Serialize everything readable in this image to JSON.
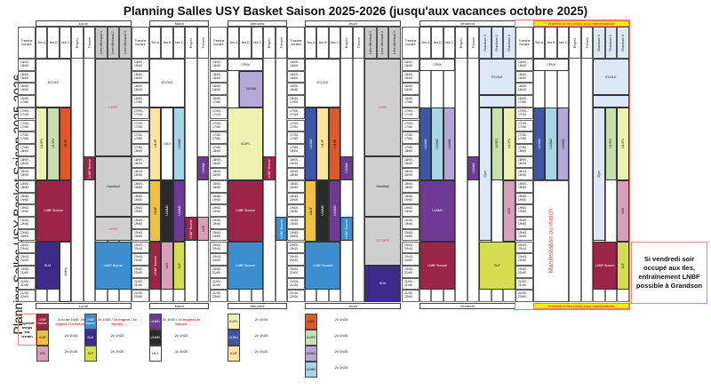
{
  "title": "Planning Salles USY Basket Saison 2025-2026 (jusqu'aux vacances octobre 2025)",
  "side_title": "Planning Salles USY Basket Saison 2025-2026",
  "time_header": "Tranche horaire",
  "time_slots": [
    {
      "start": "14h00",
      "end": "15h00"
    },
    {
      "start": "15h00",
      "end": "16h00"
    },
    {
      "start": "16h00",
      "end": "16h30"
    },
    {
      "start": "16h30",
      "end": "17h00"
    },
    {
      "start": "17h00",
      "end": "17h15"
    },
    {
      "start": "17h15",
      "end": "17h30"
    },
    {
      "start": "17h30",
      "end": "17h45"
    },
    {
      "start": "17h45",
      "end": "18h00"
    },
    {
      "start": "18h00",
      "end": "18h15"
    },
    {
      "start": "18h15",
      "end": "18h30"
    },
    {
      "start": "18h30",
      "end": "18h45"
    },
    {
      "start": "18h45",
      "end": "19h00"
    },
    {
      "start": "19h00",
      "end": "19h30"
    },
    {
      "start": "19h30",
      "end": "19h45"
    },
    {
      "start": "19h45",
      "end": "20h00"
    },
    {
      "start": "20h00",
      "end": "20h15"
    },
    {
      "start": "20h15",
      "end": "20h30"
    },
    {
      "start": "20h30",
      "end": "21h00"
    },
    {
      "start": "21h00",
      "end": "21h30"
    },
    {
      "start": "21h30",
      "end": "22h00"
    }
  ],
  "days": [
    {
      "name": "Lundi",
      "rooms": [
        "Iles A",
        "Iles B",
        "Iles C",
        "Engins",
        "Théorie",
        "Léon Michaud 1",
        "Léon Michaud 2",
        "Léon Michaud 3"
      ]
    },
    {
      "name": "Mardi",
      "rooms": [
        "Iles A",
        "Iles B",
        "Iles C",
        "Engins",
        "Théorie"
      ]
    },
    {
      "name": "Mercredi",
      "rooms": [
        "Iles A",
        "Iles B",
        "Iles C",
        "Engins",
        "Théorie"
      ]
    },
    {
      "name": "Jeudi",
      "rooms": [
        "Iles A",
        "Iles B",
        "Iles C",
        "Engins",
        "Théorie",
        "Léon Michaud 1",
        "Léon Michaud 2",
        "Léon Michaud 3"
      ]
    },
    {
      "name": "Vendredi",
      "rooms": [
        "Iles A",
        "Iles B",
        "Iles C",
        "Engins",
        "Théorie",
        "Grandson 1",
        "Grandson 2",
        "Grandson 3"
      ]
    },
    {
      "name": "Vendredi si Iles utilisé pour manifestation",
      "rooms": [
        "Iles A",
        "Iles B",
        "Iles C",
        "Engins",
        "Théorie",
        "Grandson 1",
        "Grandson 2",
        "Grandson 3"
      ],
      "highlight": true
    }
  ],
  "colors": {
    "maroon": "#9b2448",
    "blue": "#3b8fd0",
    "indigo": "#3d2a8a",
    "purple": "#6e3a96",
    "black": "#2a2a2e",
    "yellow": "#f0c040",
    "pink": "#d8a0b8",
    "lime": "#d4dc50",
    "lightyellow": "#eef2b0",
    "green": "#c8e0b0",
    "orange": "#e0582a",
    "royal": "#3f56a8",
    "beige": "#fbe3a0",
    "lightblue": "#a8d4e8",
    "lavender": "#b3a8d8",
    "grey": "#cfcfcf",
    "school": "#dce8f5",
    "white": "#ffffff",
    "red_text": "#e8483c"
  },
  "blocks": [
    {
      "day": 0,
      "from": 0,
      "to": 2,
      "start": "14h00",
      "end": "17h00",
      "label": "ÉCOLE",
      "color": "#ffffff"
    },
    {
      "day": 0,
      "from": 5,
      "to": 7,
      "start": "14h00",
      "end": "18h00",
      "label": "LIBRE",
      "color": "#cfcfcf",
      "text": "#e8483c"
    },
    {
      "day": 0,
      "from": 5,
      "to": 7,
      "start": "18h00",
      "end": "19h30",
      "label": "Handball",
      "color": "#cfcfcf"
    },
    {
      "day": 0,
      "from": 5,
      "to": 7,
      "start": "19h30",
      "end": "20h00",
      "label": "LIBRE",
      "color": "#cfcfcf",
      "text": "#e8483c"
    },
    {
      "day": 0,
      "from": 5,
      "to": 7,
      "start": "20h00",
      "end": "21h30",
      "label": "LNBF Bourse",
      "color": "#3b8fd0",
      "text": "#fff"
    },
    {
      "day": 0,
      "from": 0,
      "to": 0,
      "start": "17h00",
      "end": "18h30",
      "label": "U13F1",
      "color": "#eef2b0"
    },
    {
      "day": 0,
      "from": 1,
      "to": 1,
      "start": "17h00",
      "end": "18h30",
      "label": "U13F2",
      "color": "#c8e0b0"
    },
    {
      "day": 0,
      "from": 2,
      "to": 2,
      "start": "17h00",
      "end": "18h30",
      "label": "U15F",
      "color": "#e0582a"
    },
    {
      "day": 0,
      "from": 4,
      "to": 4,
      "start": "18h00",
      "end": "18h30",
      "label": "LNBF Bourse",
      "color": "#9b2448",
      "text": "#fff"
    },
    {
      "day": 0,
      "from": 0,
      "to": 2,
      "start": "18h30",
      "end": "20h00",
      "label": "LNBF Bourse",
      "color": "#9b2448",
      "text": "#fff"
    },
    {
      "day": 0,
      "from": 0,
      "to": 1,
      "start": "20h00",
      "end": "21h30",
      "label": "SLM",
      "color": "#3d2a8a",
      "text": "#fff"
    },
    {
      "day": 0,
      "from": 2,
      "to": 2,
      "start": "20h00",
      "end": "22h00",
      "label": "Volley",
      "color": "#ffffff"
    },
    {
      "day": 1,
      "from": 0,
      "to": 2,
      "start": "14h00",
      "end": "17h00",
      "label": "ÉCOLE",
      "color": "#ffffff"
    },
    {
      "day": 1,
      "from": 0,
      "to": 0,
      "start": "17h00",
      "end": "18h30",
      "label": "U14F",
      "color": "#fbe3a0"
    },
    {
      "day": 1,
      "from": 1,
      "to": 1,
      "start": "17h00",
      "end": "18h30",
      "label": "U8-9",
      "color": "#ffffff",
      "horizontal": true
    },
    {
      "day": 1,
      "from": 2,
      "to": 2,
      "start": "17h00",
      "end": "18h30",
      "label": "U10M2",
      "color": "#a8d4e8"
    },
    {
      "day": 1,
      "from": 4,
      "to": 4,
      "start": "18h00",
      "end": "18h30",
      "label": "U16M1",
      "color": "#6e3a96",
      "text": "#fff"
    },
    {
      "day": 1,
      "from": 0,
      "to": 0,
      "start": "18h30",
      "end": "20h00",
      "label": "U18F",
      "color": "#f0c040"
    },
    {
      "day": 1,
      "from": 1,
      "to": 1,
      "start": "18h30",
      "end": "20h00",
      "label": "U16M2",
      "color": "#2a2a2e",
      "text": "#fff"
    },
    {
      "day": 1,
      "from": 2,
      "to": 2,
      "start": "18h30",
      "end": "20h00",
      "label": "U16M1",
      "color": "#6e3a96",
      "text": "#fff"
    },
    {
      "day": 1,
      "from": 3,
      "to": 3,
      "start": "19h30",
      "end": "20h00",
      "label": "LNBF Bourse",
      "color": "#9b2448",
      "text": "#fff"
    },
    {
      "day": 1,
      "from": 4,
      "to": 4,
      "start": "19h30",
      "end": "20h00",
      "label": "U20",
      "color": "#d8a0b8"
    },
    {
      "day": 1,
      "from": 0,
      "to": 0,
      "start": "20h00",
      "end": "21h30",
      "label": "LNBF Bourse",
      "color": "#9b2448",
      "text": "#fff"
    },
    {
      "day": 1,
      "from": 1,
      "to": 1,
      "start": "20h00",
      "end": "21h30",
      "label": "U20",
      "color": "#d8a0b8"
    },
    {
      "day": 1,
      "from": 2,
      "to": 2,
      "start": "20h00",
      "end": "21h30",
      "label": "SLF",
      "color": "#d4dc50"
    },
    {
      "day": 2,
      "from": 0,
      "to": 2,
      "start": "14h00",
      "end": "15h00",
      "label": "CPNV",
      "color": "#ffffff"
    },
    {
      "day": 2,
      "from": 1,
      "to": 2,
      "start": "15h00",
      "end": "17h00",
      "label": "U10M1",
      "color": "#b3a8d8"
    },
    {
      "day": 2,
      "from": 0,
      "to": 2,
      "start": "17h00",
      "end": "18h30",
      "label": "U13F1",
      "color": "#eef2b0"
    },
    {
      "day": 2,
      "from": 3,
      "to": 3,
      "start": "18h00",
      "end": "18h30",
      "label": "LNBF Bourse",
      "color": "#9b2448",
      "text": "#fff"
    },
    {
      "day": 2,
      "from": 0,
      "to": 2,
      "start": "18h30",
      "end": "20h00",
      "label": "LNBF Bourse",
      "color": "#9b2448",
      "text": "#fff"
    },
    {
      "day": 2,
      "from": 4,
      "to": 4,
      "start": "19h30",
      "end": "20h00",
      "label": "LNBF Bourse",
      "color": "#3b8fd0",
      "text": "#fff"
    },
    {
      "day": 2,
      "from": 0,
      "to": 2,
      "start": "20h00",
      "end": "21h30",
      "label": "LNBF Bourse",
      "color": "#3b8fd0",
      "text": "#fff"
    },
    {
      "day": 3,
      "from": 0,
      "to": 2,
      "start": "14h00",
      "end": "17h00",
      "label": "ÉCOLE",
      "color": "#ffffff"
    },
    {
      "day": 3,
      "from": 5,
      "to": 7,
      "start": "14h00",
      "end": "18h00",
      "label": "LIBRE",
      "color": "#cfcfcf",
      "text": "#e8483c"
    },
    {
      "day": 3,
      "from": 5,
      "to": 7,
      "start": "18h00",
      "end": "19h30",
      "label": "Handball",
      "color": "#cfcfcf"
    },
    {
      "day": 3,
      "from": 5,
      "to": 7,
      "start": "19h30",
      "end": "20h30",
      "label": "OCCUPÉ",
      "color": "#cfcfcf",
      "text": "#e8483c"
    },
    {
      "day": 3,
      "from": 5,
      "to": 7,
      "start": "20h30",
      "end": "22h00",
      "label": "SLM",
      "color": "#3d2a8a",
      "text": "#fff"
    },
    {
      "day": 3,
      "from": 0,
      "to": 0,
      "start": "17h00",
      "end": "18h30",
      "label": "U13M1",
      "color": "#3f56a8",
      "text": "#fff"
    },
    {
      "day": 3,
      "from": 1,
      "to": 1,
      "start": "17h00",
      "end": "18h30",
      "label": "U14F",
      "color": "#fbe3a0"
    },
    {
      "day": 3,
      "from": 2,
      "to": 2,
      "start": "17h00",
      "end": "18h30",
      "label": "U15F",
      "color": "#e0582a"
    },
    {
      "day": 3,
      "from": 3,
      "to": 3,
      "start": "18h00",
      "end": "18h30",
      "label": "U16M1",
      "color": "#6e3a96",
      "text": "#fff"
    },
    {
      "day": 3,
      "from": 0,
      "to": 0,
      "start": "18h30",
      "end": "20h00",
      "label": "U18F",
      "color": "#f0c040"
    },
    {
      "day": 3,
      "from": 1,
      "to": 1,
      "start": "18h30",
      "end": "20h00",
      "label": "U16M2",
      "color": "#2a2a2e",
      "text": "#fff"
    },
    {
      "day": 3,
      "from": 2,
      "to": 2,
      "start": "18h30",
      "end": "20h00",
      "label": "U16M1",
      "color": "#6e3a96",
      "text": "#fff"
    },
    {
      "day": 3,
      "from": 3,
      "to": 3,
      "start": "19h30",
      "end": "20h00",
      "label": "LNBF Bourse",
      "color": "#3b8fd0",
      "text": "#fff"
    },
    {
      "day": 3,
      "from": 0,
      "to": 2,
      "start": "20h00",
      "end": "21h30",
      "label": "LNBF Bourse",
      "color": "#3b8fd0",
      "text": "#fff"
    },
    {
      "day": 4,
      "from": 0,
      "to": 2,
      "start": "14h00",
      "end": "15h00",
      "label": "CPNV",
      "color": "#ffffff"
    },
    {
      "day": 4,
      "from": 5,
      "to": 7,
      "start": "14h00",
      "end": "16h30",
      "label": "ÉCOLE",
      "color": "#dce8f5"
    },
    {
      "day": 4,
      "from": 5,
      "to": 7,
      "start": "16h30",
      "end": "17h00",
      "label": "",
      "color": "#dce8f5"
    },
    {
      "day": 4,
      "from": 0,
      "to": 0,
      "start": "17h00",
      "end": "18h30",
      "label": "U13M1",
      "color": "#3f56a8",
      "text": "#fff"
    },
    {
      "day": 4,
      "from": 1,
      "to": 1,
      "start": "17h00",
      "end": "18h30",
      "label": "U10M2",
      "color": "#a8d4e8"
    },
    {
      "day": 4,
      "from": 2,
      "to": 2,
      "start": "17h00",
      "end": "18h30",
      "label": "U10M1",
      "color": "#b3a8d8"
    },
    {
      "day": 4,
      "from": 4,
      "to": 4,
      "start": "18h00",
      "end": "18h30",
      "label": "U16M1",
      "color": "#6e3a96",
      "text": "#fff"
    },
    {
      "day": 4,
      "from": 0,
      "to": 2,
      "start": "18h30",
      "end": "20h00",
      "label": "U16M1",
      "color": "#6e3a96",
      "text": "#fff"
    },
    {
      "day": 4,
      "from": 0,
      "to": 2,
      "start": "20h00",
      "end": "21h30",
      "label": "LNBF Bourse",
      "color": "#9b2448",
      "text": "#fff"
    },
    {
      "day": 4,
      "from": 5,
      "to": 5,
      "start": "17h00",
      "end": "20h00",
      "label": "Gym",
      "color": "#dce8f5"
    },
    {
      "day": 4,
      "from": 6,
      "to": 6,
      "start": "17h00",
      "end": "18h30",
      "label": "U13F2",
      "color": "#c8e0b0"
    },
    {
      "day": 4,
      "from": 7,
      "to": 7,
      "start": "17h00",
      "end": "18h30",
      "label": "U13F1",
      "color": "#eef2b0"
    },
    {
      "day": 4,
      "from": 7,
      "to": 7,
      "start": "18h30",
      "end": "20h00",
      "label": "U20",
      "color": "#d8a0b8"
    },
    {
      "day": 4,
      "from": 5,
      "to": 7,
      "start": "20h00",
      "end": "21h30",
      "label": "SLF",
      "color": "#d4dc50"
    },
    {
      "day": 5,
      "from": 0,
      "to": 2,
      "start": "14h00",
      "end": "15h00",
      "label": "CPNV",
      "color": "#ffffff"
    },
    {
      "day": 5,
      "from": 5,
      "to": 7,
      "start": "14h00",
      "end": "16h30",
      "label": "ÉCOLE",
      "color": "#dce8f5"
    },
    {
      "day": 5,
      "from": 5,
      "to": 7,
      "start": "16h30",
      "end": "17h00",
      "label": "",
      "color": "#dce8f5"
    },
    {
      "day": 5,
      "from": 0,
      "to": 0,
      "start": "17h00",
      "end": "18h30",
      "label": "U13M1",
      "color": "#3f56a8",
      "text": "#fff"
    },
    {
      "day": 5,
      "from": 1,
      "to": 1,
      "start": "17h00",
      "end": "18h30",
      "label": "U10M2",
      "color": "#a8d4e8"
    },
    {
      "day": 5,
      "from": 2,
      "to": 2,
      "start": "17h00",
      "end": "18h30",
      "label": "U10M1",
      "color": "#b3a8d8"
    },
    {
      "day": 5,
      "from": 5,
      "to": 5,
      "start": "17h00",
      "end": "20h00",
      "label": "Gym",
      "color": "#dce8f5"
    },
    {
      "day": 5,
      "from": 6,
      "to": 6,
      "start": "17h00",
      "end": "18h30",
      "label": "U13F2",
      "color": "#c8e0b0"
    },
    {
      "day": 5,
      "from": 7,
      "to": 7,
      "start": "17h00",
      "end": "18h30",
      "label": "U13F1",
      "color": "#eef2b0"
    },
    {
      "day": 5,
      "from": 7,
      "to": 7,
      "start": "18h30",
      "end": "20h00",
      "label": "U20",
      "color": "#d8a0b8"
    },
    {
      "day": 5,
      "from": 5,
      "to": 6,
      "start": "20h00",
      "end": "21h30",
      "label": "LNBF Bourse",
      "color": "#9b2448",
      "text": "#fff"
    },
    {
      "day": 5,
      "from": 7,
      "to": 7,
      "start": "20h00",
      "end": "21h30",
      "label": "SLF",
      "color": "#d4dc50"
    }
  ],
  "manifestation_label": "Manifestation ou match",
  "grandson_note": "Si vendredi soir occupé aux Iles, entraînement LNBF possible à Grandson",
  "legend": {
    "title": "Légende: temps sur terrain",
    "groups": [
      [
        {
          "label": "LNBF Bourse",
          "color": "#9b2448",
          "text": "#fff",
          "desc": "3 ou de 1h30: ",
          "desc_red": "2x engins / 1x théorie"
        },
        {
          "label": "U18F",
          "color": "#f0c040",
          "desc": "2x 1h30"
        },
        {
          "label": "U20",
          "color": "#d8a0b8",
          "desc": "2x 1h30"
        }
      ],
      [
        {
          "label": "LNBF Bourse",
          "color": "#3b8fd0",
          "text": "#fff",
          "desc": "3x 1h30 / ",
          "desc_red": "1x engins / 1x théorie"
        },
        {
          "label": "SLM",
          "color": "#3d2a8a",
          "text": "#fff",
          "desc": "2x 1h30"
        },
        {
          "label": "SLF",
          "color": "#d4dc50",
          "desc": "2x 1h30"
        }
      ],
      [
        {
          "label": "U16M1",
          "color": "#6e3a96",
          "text": "#fff",
          "desc": "3x 1h30 / ",
          "desc_red": "1x engins/ 2x théorie"
        },
        {
          "label": "U16M2",
          "color": "#2a2a2e",
          "text": "#fff",
          "desc": "2x 1h30"
        },
        {
          "label": "U8-9",
          "color": "#ffffff",
          "desc": "1x 1h30"
        }
      ],
      [
        {
          "label": "U13F1",
          "color": "#eef2b0",
          "desc": "2x 1h30"
        },
        {
          "label": "U13M1",
          "color": "#3f56a8",
          "text": "#fff",
          "desc": "2x 1h30"
        },
        {
          "label": "U14F",
          "color": "#fbe3a0",
          "desc": "2x 1h30"
        }
      ],
      [
        {
          "label": "U15F",
          "color": "#e0582a",
          "desc": "2x 1h30"
        },
        {
          "label": "U13F2",
          "color": "#c8e0b0",
          "desc": "2x 1h30"
        },
        {
          "label": "U10M1",
          "color": "#b3a8d8",
          "desc": "2x 1h30"
        },
        {
          "label": "U10M2",
          "color": "#a8d4e8",
          "desc": "2x 1h30"
        }
      ]
    ]
  }
}
